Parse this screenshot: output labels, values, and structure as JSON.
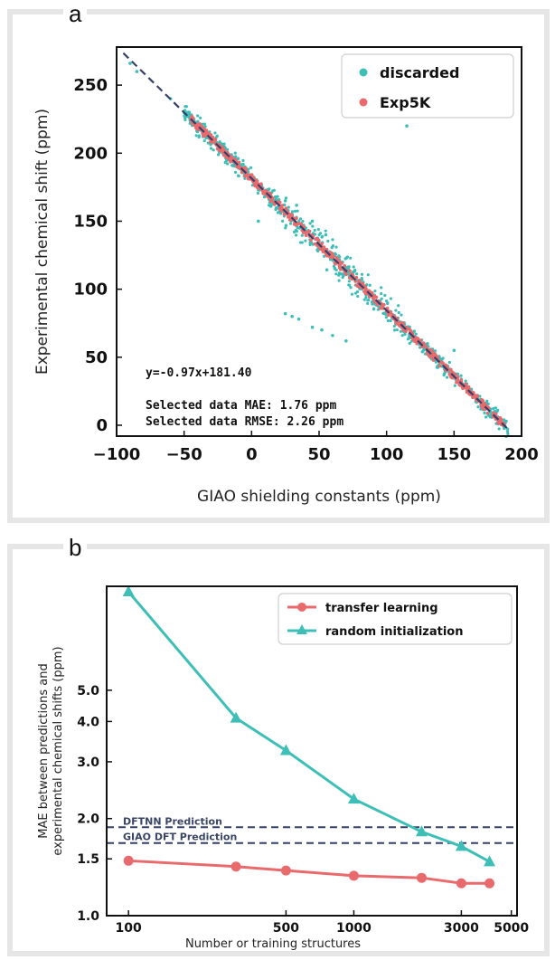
{
  "panels": {
    "a_label": "a",
    "b_label": "b"
  },
  "colors": {
    "teal": "#3dbfb8",
    "pink": "#e96a6d",
    "dash": "#34406a",
    "frame": "#e6e6e6"
  },
  "chart_data": [
    {
      "type": "scatter",
      "xlabel": "GIAO shielding constants (ppm)",
      "ylabel": "Experimental chemical shift (ppm)",
      "xlim": [
        -100,
        200
      ],
      "ylim": [
        -8,
        278
      ],
      "xticks": [
        "−100",
        "−50",
        "0",
        "50",
        "100",
        "150",
        "200"
      ],
      "xtick_values": [
        -100,
        -50,
        0,
        50,
        100,
        150,
        200
      ],
      "yticks": [
        "0",
        "50",
        "100",
        "150",
        "200",
        "250"
      ],
      "ytick_values": [
        0,
        50,
        100,
        150,
        200,
        250
      ],
      "legend": {
        "placement": "top-right",
        "entries": [
          "discarded",
          "Exp5K"
        ]
      },
      "fit_line": {
        "slope": -0.97,
        "intercept": 181.4,
        "x_range": [
          -95,
          190
        ]
      },
      "annotations": [
        "y=-0.97x+181.40",
        "Selected data MAE: 1.76 ppm",
        "Selected data RMSE: 2.26 ppm"
      ],
      "series": [
        {
          "name": "discarded",
          "color": "#3dbfb8",
          "points": [
            [
              -90,
              266
            ],
            [
              -85,
              260
            ],
            [
              -60,
              240
            ],
            [
              -45,
              224
            ],
            [
              -30,
              212
            ],
            [
              -20,
              203
            ],
            [
              -10,
              196
            ],
            [
              0,
              184
            ],
            [
              10,
              172
            ],
            [
              20,
              160
            ],
            [
              25,
              165
            ],
            [
              30,
              155
            ],
            [
              40,
              145
            ],
            [
              45,
              150
            ],
            [
              50,
              135
            ],
            [
              55,
              140
            ],
            [
              60,
              123
            ],
            [
              70,
              112
            ],
            [
              80,
              103
            ],
            [
              90,
              93
            ],
            [
              100,
              83
            ],
            [
              110,
              75
            ],
            [
              120,
              65
            ],
            [
              130,
              56
            ],
            [
              140,
              46
            ],
            [
              150,
              38
            ],
            [
              160,
              28
            ],
            [
              170,
              19
            ],
            [
              180,
              10
            ],
            [
              188,
              2
            ],
            [
              25,
              82
            ],
            [
              30,
              80
            ],
            [
              35,
              78
            ],
            [
              45,
              72
            ],
            [
              52,
              70
            ],
            [
              60,
              66
            ],
            [
              70,
              62
            ],
            [
              115,
              220
            ],
            [
              150,
              55
            ],
            [
              5,
              150
            ]
          ]
        },
        {
          "name": "Exp5K",
          "color": "#e96a6d",
          "points": [
            [
              -45,
              225
            ],
            [
              -30,
              210
            ],
            [
              -15,
              196
            ],
            [
              0,
              181
            ],
            [
              15,
              167
            ],
            [
              30,
              152
            ],
            [
              45,
              138
            ],
            [
              60,
              123
            ],
            [
              75,
              109
            ],
            [
              90,
              94
            ],
            [
              105,
              80
            ],
            [
              120,
              65
            ],
            [
              135,
              51
            ],
            [
              150,
              36
            ],
            [
              165,
              22
            ],
            [
              180,
              7
            ],
            [
              187,
              1
            ]
          ]
        }
      ]
    },
    {
      "type": "line",
      "xlabel": "Number or training structures",
      "ylabel": "MAE between predictions and experimental chemical shifts (ppm)",
      "xscale": "log",
      "yscale": "log",
      "xlim": [
        80,
        5300
      ],
      "ylim": [
        1.0,
        10.5
      ],
      "xticks": [
        "100",
        "500",
        "1000",
        "3000",
        "5000"
      ],
      "xtick_values": [
        100,
        500,
        1000,
        3000,
        5000
      ],
      "yticks": [
        "1.0",
        "1.5",
        "2.0",
        "3.0",
        "4.0",
        "5.0"
      ],
      "ytick_values": [
        1.0,
        1.5,
        2.0,
        3.0,
        4.0,
        5.0
      ],
      "legend": {
        "placement": "top-right",
        "entries": [
          "transfer learning",
          "random initialization"
        ]
      },
      "reference_lines": [
        {
          "label": "DFTNN Prediction",
          "y": 1.88
        },
        {
          "label": "GIAO DFT Prediction",
          "y": 1.68
        }
      ],
      "x": [
        100,
        300,
        500,
        1000,
        2000,
        3000,
        4000
      ],
      "series": [
        {
          "name": "transfer learning",
          "marker": "circle",
          "color": "#e96a6d",
          "values": [
            1.48,
            1.42,
            1.38,
            1.33,
            1.31,
            1.26,
            1.26
          ]
        },
        {
          "name": "random initialization",
          "marker": "triangle",
          "color": "#3dbfb8",
          "values": [
            10.1,
            4.1,
            3.25,
            2.3,
            1.82,
            1.64,
            1.47
          ]
        }
      ]
    }
  ]
}
